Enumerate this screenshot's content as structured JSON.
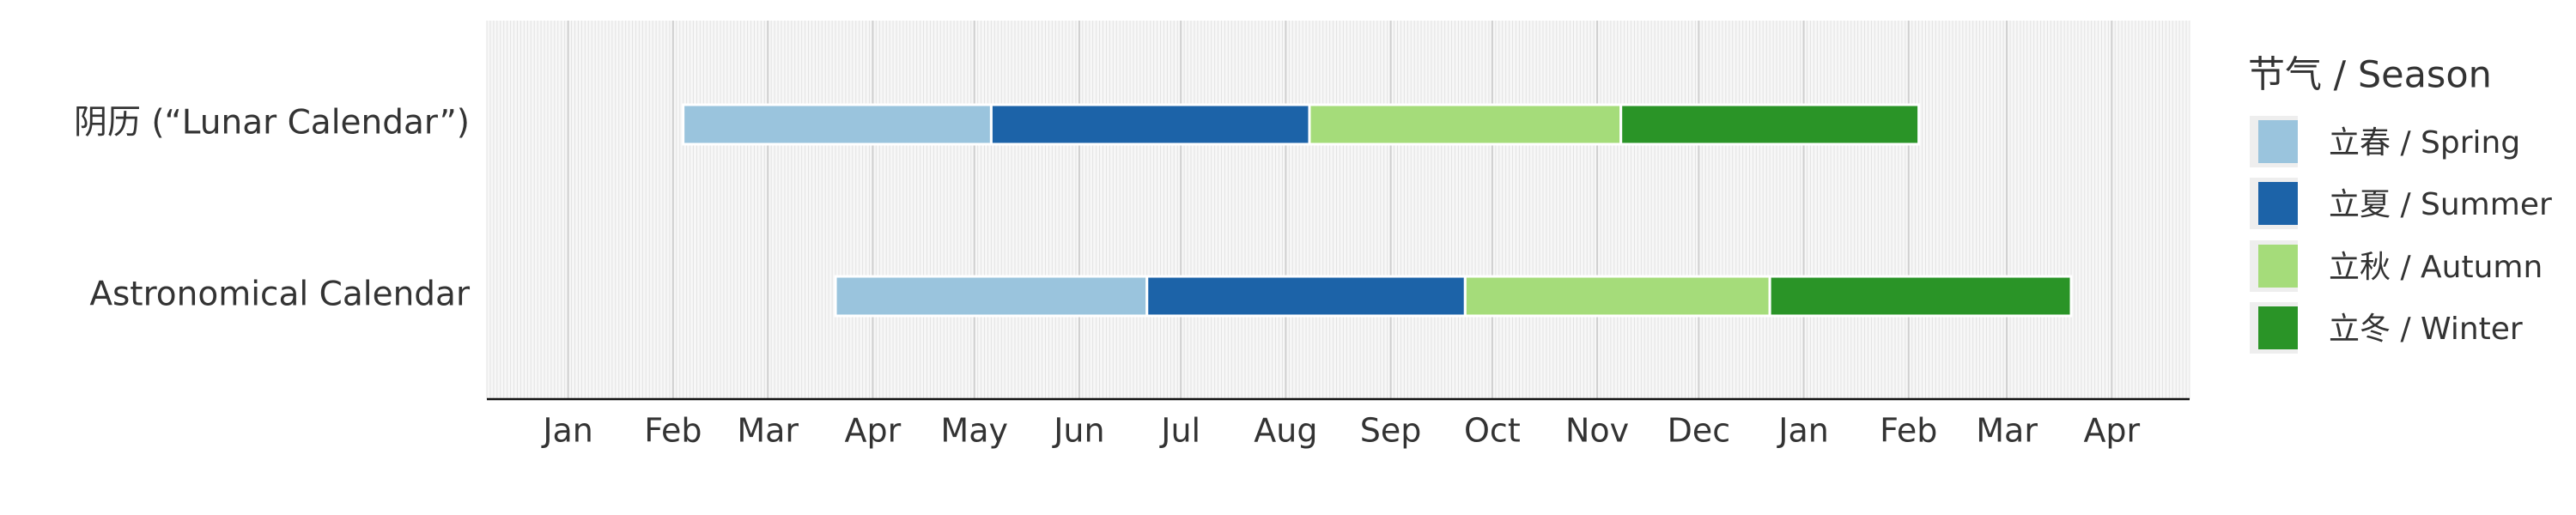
{
  "chart_data": {
    "type": "gantt",
    "y_categories": [
      "阴历 (“Lunar Calendar”)",
      "Astronomical Calendar"
    ],
    "x_ticks": [
      {
        "date": "2023-01-01",
        "label": "Jan"
      },
      {
        "date": "2023-02-01",
        "label": "Feb"
      },
      {
        "date": "2023-03-01",
        "label": "Mar"
      },
      {
        "date": "2023-04-01",
        "label": "Apr"
      },
      {
        "date": "2023-05-01",
        "label": "May"
      },
      {
        "date": "2023-06-01",
        "label": "Jun"
      },
      {
        "date": "2023-07-01",
        "label": "Jul"
      },
      {
        "date": "2023-08-01",
        "label": "Aug"
      },
      {
        "date": "2023-09-01",
        "label": "Sep"
      },
      {
        "date": "2023-10-01",
        "label": "Oct"
      },
      {
        "date": "2023-11-01",
        "label": "Nov"
      },
      {
        "date": "2023-12-01",
        "label": "Dec"
      },
      {
        "date": "2024-01-01",
        "label": "Jan"
      },
      {
        "date": "2024-02-01",
        "label": "Feb"
      },
      {
        "date": "2024-03-01",
        "label": "Mar"
      },
      {
        "date": "2024-04-01",
        "label": "Apr"
      }
    ],
    "xlim": [
      "2022-12-08",
      "2024-04-24"
    ],
    "grid": "daily vertical lines",
    "legend": {
      "title": "节气 / Season",
      "placement": "right"
    },
    "series": [
      {
        "name": "立春 / Spring",
        "color": "#9ac4dd"
      },
      {
        "name": "立夏 / Summer",
        "color": "#1c63a8"
      },
      {
        "name": "立秋 / Autumn",
        "color": "#a5dc7a"
      },
      {
        "name": "立冬 / Winter",
        "color": "#2a9427"
      }
    ],
    "tasks": [
      {
        "row": 0,
        "series": 0,
        "start": "2023-02-04",
        "end": "2023-05-06"
      },
      {
        "row": 0,
        "series": 1,
        "start": "2023-05-06",
        "end": "2023-08-08"
      },
      {
        "row": 0,
        "series": 2,
        "start": "2023-08-08",
        "end": "2023-11-08"
      },
      {
        "row": 0,
        "series": 3,
        "start": "2023-11-08",
        "end": "2024-02-04"
      },
      {
        "row": 1,
        "series": 0,
        "start": "2023-03-21",
        "end": "2023-06-21"
      },
      {
        "row": 1,
        "series": 1,
        "start": "2023-06-21",
        "end": "2023-09-23"
      },
      {
        "row": 1,
        "series": 2,
        "start": "2023-09-23",
        "end": "2023-12-22"
      },
      {
        "row": 1,
        "series": 3,
        "start": "2023-12-22",
        "end": "2024-03-20"
      }
    ]
  }
}
